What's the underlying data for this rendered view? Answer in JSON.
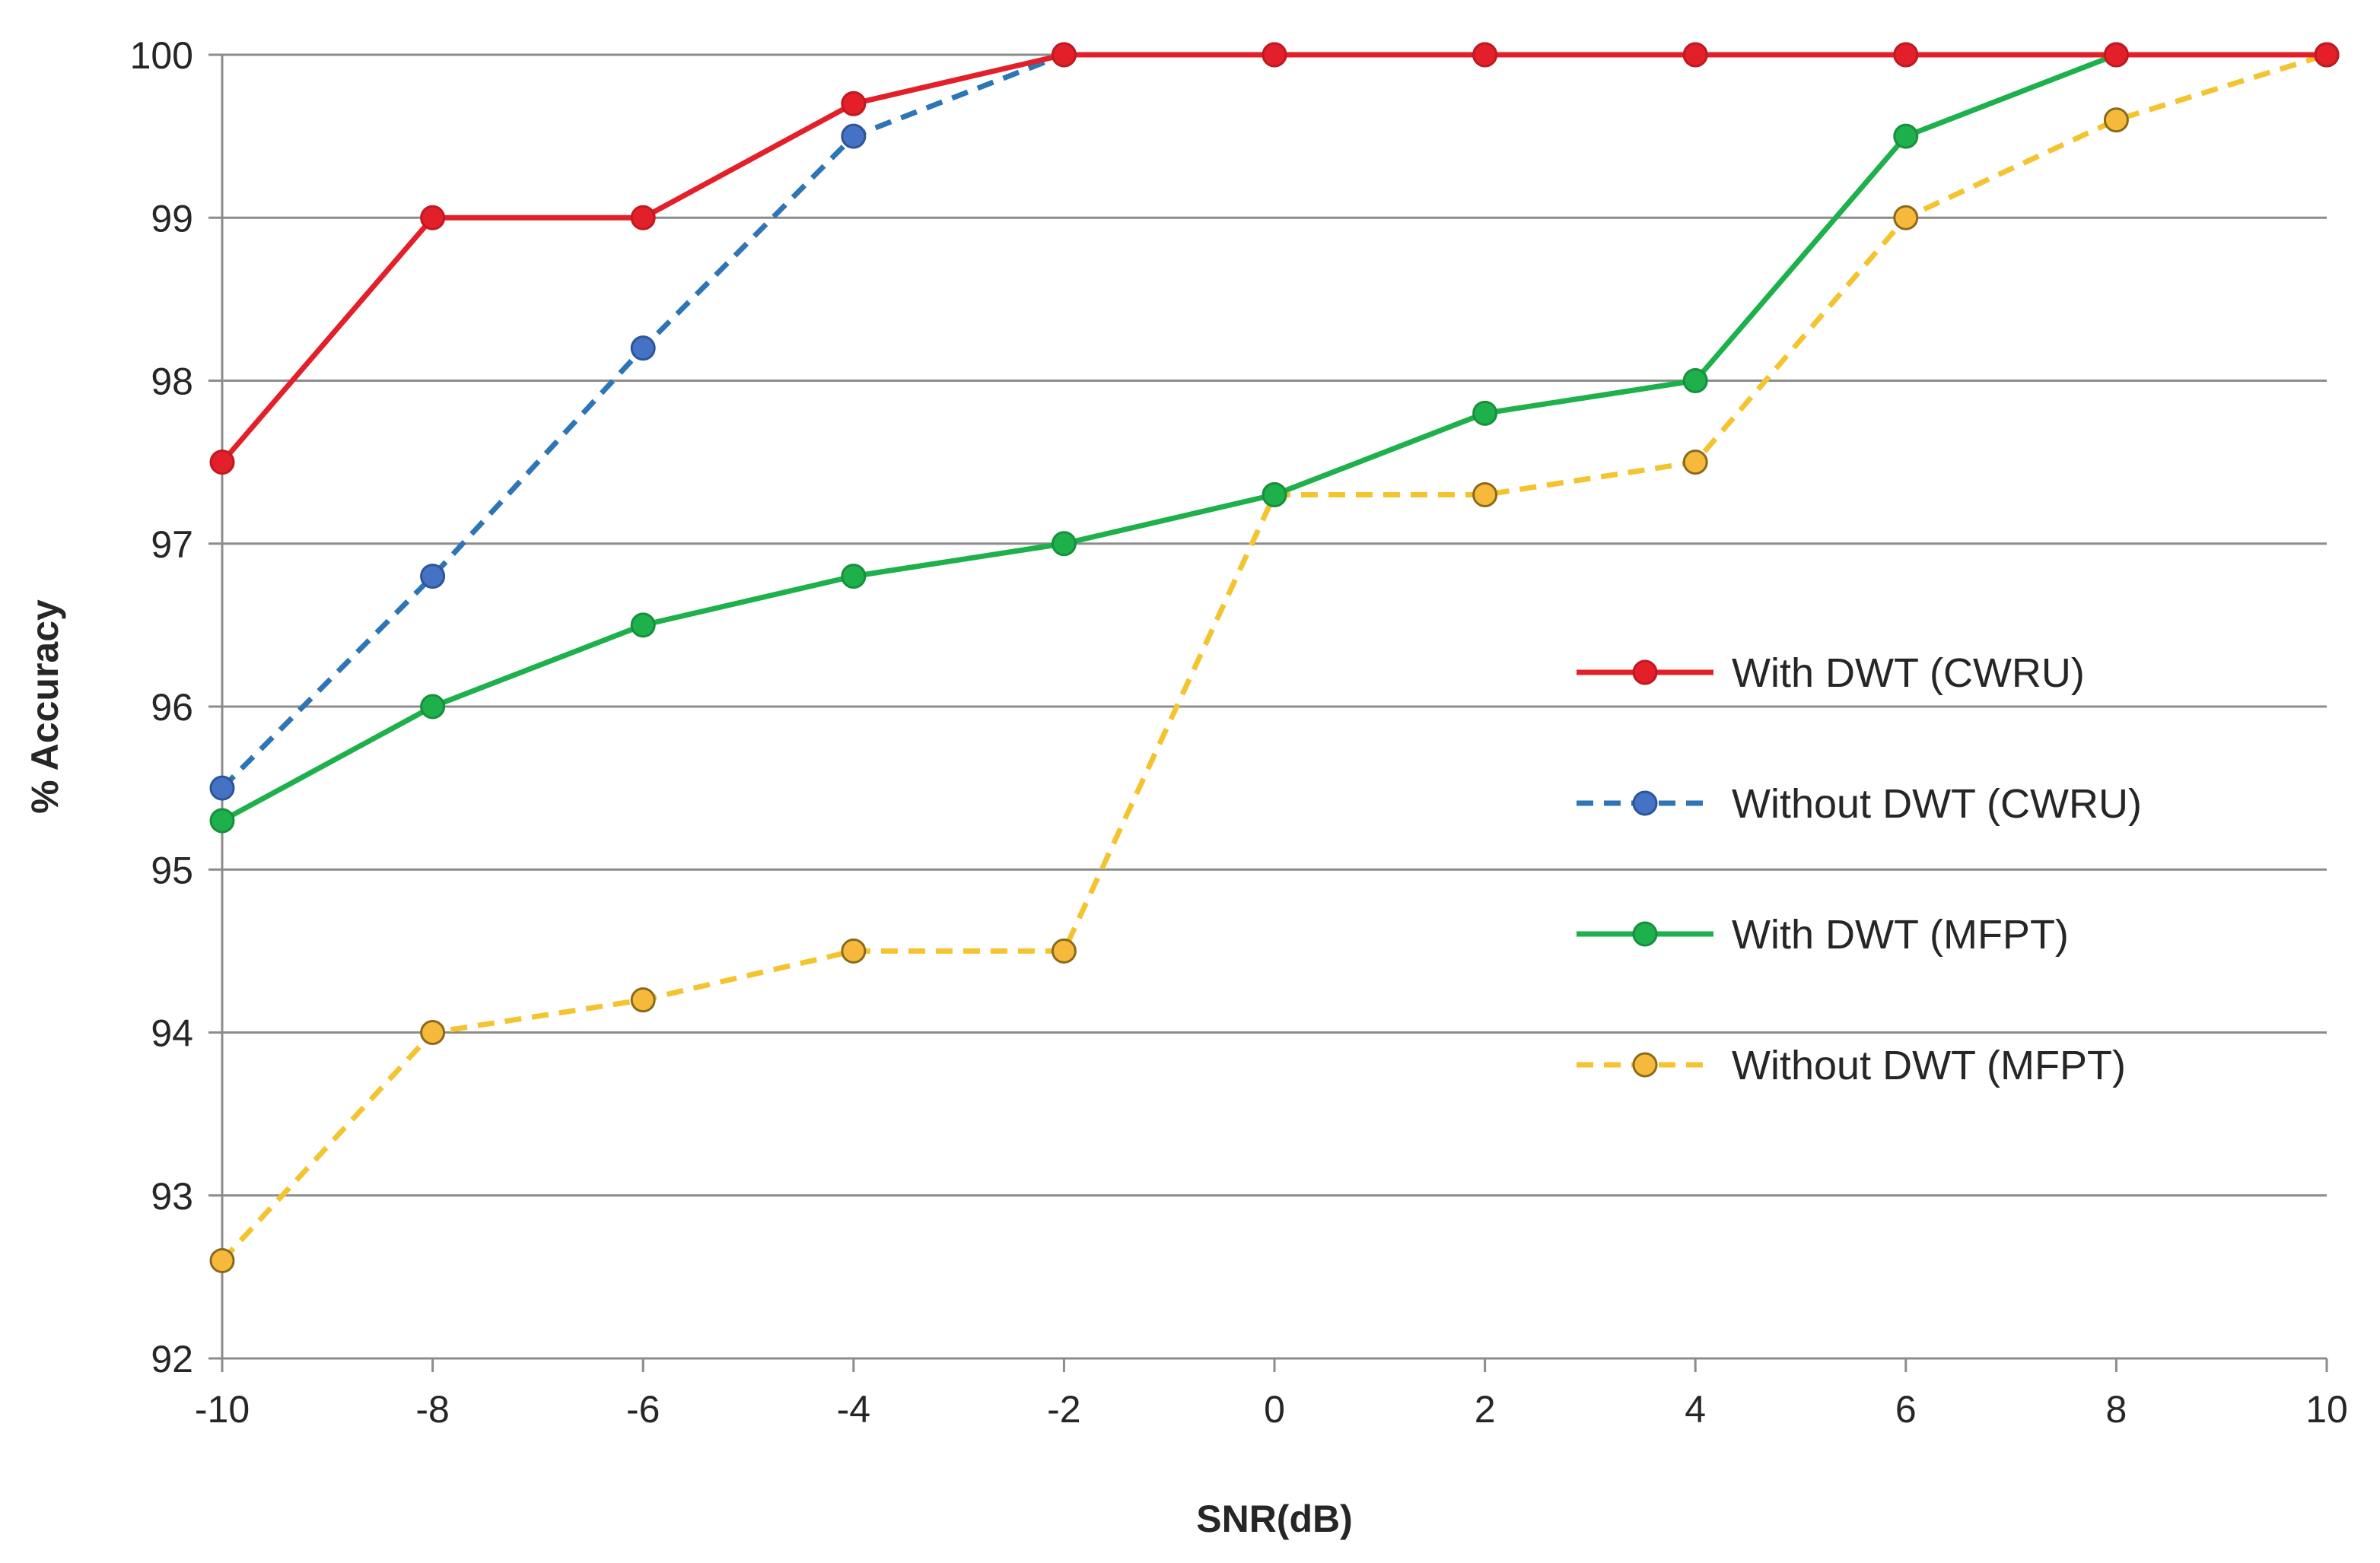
{
  "chart_data": {
    "type": "line",
    "title": "",
    "xlabel": "SNR(dB)",
    "ylabel": "% Accuracy",
    "x": [
      -10,
      -8,
      -6,
      -4,
      -2,
      0,
      2,
      4,
      6,
      8,
      10
    ],
    "x_tick_labels": [
      "-10",
      "-8",
      "-6",
      "-4",
      "-2",
      "0",
      "2",
      "4",
      "6",
      "8",
      "10"
    ],
    "y_tick_values": [
      92,
      93,
      94,
      95,
      96,
      97,
      98,
      99,
      100
    ],
    "y_tick_labels": [
      "92",
      "93",
      "94",
      "95",
      "96",
      "97",
      "98",
      "99",
      "100"
    ],
    "xlim": [
      -10,
      10
    ],
    "ylim": [
      92,
      100
    ],
    "grid": "horizontal",
    "legend_position": "right-center",
    "series": [
      {
        "name": "With DWT (CWRU)",
        "values": [
          97.5,
          99.0,
          99.0,
          99.7,
          100,
          100,
          100,
          100,
          100,
          100,
          100
        ],
        "color": "#e3202a",
        "marker_color": "#e3202a",
        "marker_edge": "#c21820",
        "dash": false
      },
      {
        "name": "Without DWT (CWRU)",
        "values": [
          95.5,
          96.8,
          98.2,
          99.5,
          100,
          100,
          100,
          100,
          100,
          100,
          100
        ],
        "color": "#2e75b6",
        "marker_color": "#4472c4",
        "marker_edge": "#2f5597",
        "dash": true
      },
      {
        "name": "With DWT (MFPT)",
        "values": [
          95.3,
          96.0,
          96.5,
          96.8,
          97.0,
          97.3,
          97.8,
          98.0,
          99.5,
          100,
          100
        ],
        "color": "#1db04b",
        "marker_color": "#1db04b",
        "marker_edge": "#17903d",
        "dash": false
      },
      {
        "name": "Without DWT (MFPT)",
        "values": [
          92.6,
          94.0,
          94.2,
          94.5,
          94.5,
          97.3,
          97.3,
          97.5,
          99.0,
          99.6,
          100
        ],
        "color": "#f4c430",
        "marker_color": "#f6b93b",
        "marker_edge": "#8a6a1a",
        "dash": true
      }
    ]
  }
}
